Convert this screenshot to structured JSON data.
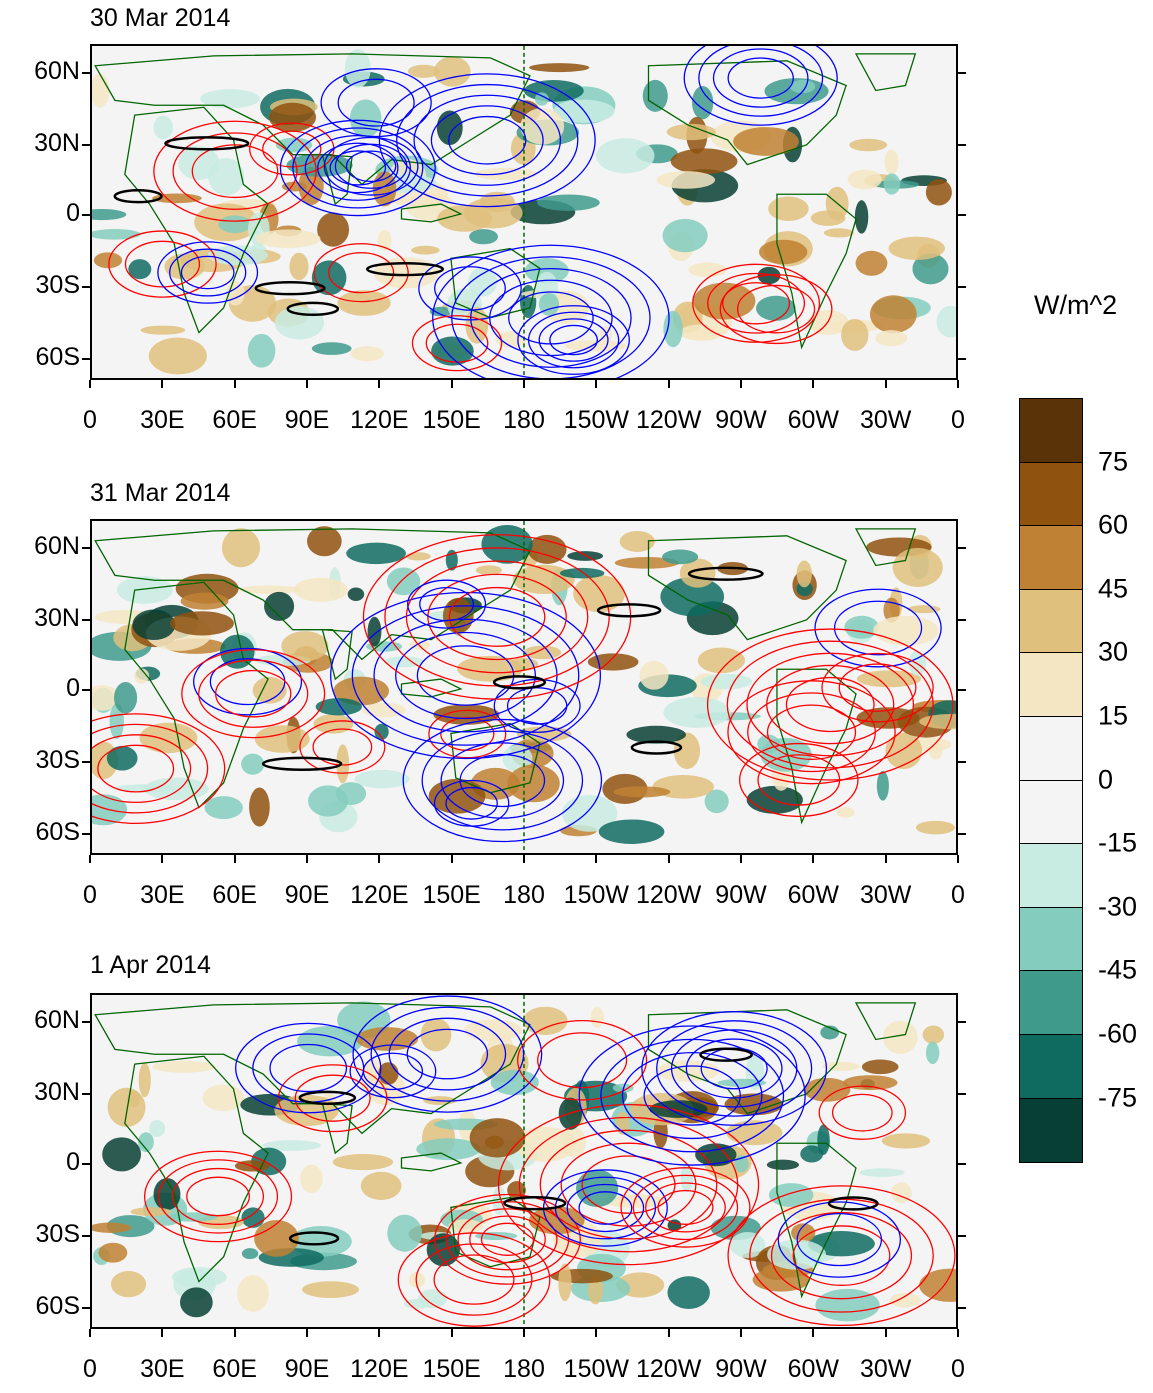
{
  "panels": [
    {
      "title": "30 Mar 2014"
    },
    {
      "title": "31 Mar 2014"
    },
    {
      "title": "1 Apr 2014"
    }
  ],
  "lat_labels": [
    "60N",
    "30N",
    "0",
    "30S",
    "60S"
  ],
  "lon_labels": [
    "0",
    "30E",
    "60E",
    "90E",
    "120E",
    "150E",
    "180",
    "150W",
    "120W",
    "90W",
    "60W",
    "30W",
    "0"
  ],
  "colorbar": {
    "unit": "W/m^2",
    "levels": [
      "75",
      "60",
      "45",
      "30",
      "15",
      "0",
      "-15",
      "-30",
      "-45",
      "-60",
      "-75"
    ],
    "colors": [
      "#5a3408",
      "#8f520f",
      "#bf8133",
      "#dfc07d",
      "#f5e6c3",
      "#f4f4f4",
      "#f4f4f4",
      "#c8ebe2",
      "#84cdbe",
      "#3f9a8c",
      "#0f6b60",
      "#073f34"
    ]
  },
  "contour_colors": {
    "positive": "#ff0000",
    "negative": "#0000ff",
    "zero": "#000000",
    "coast": "#006400"
  }
}
